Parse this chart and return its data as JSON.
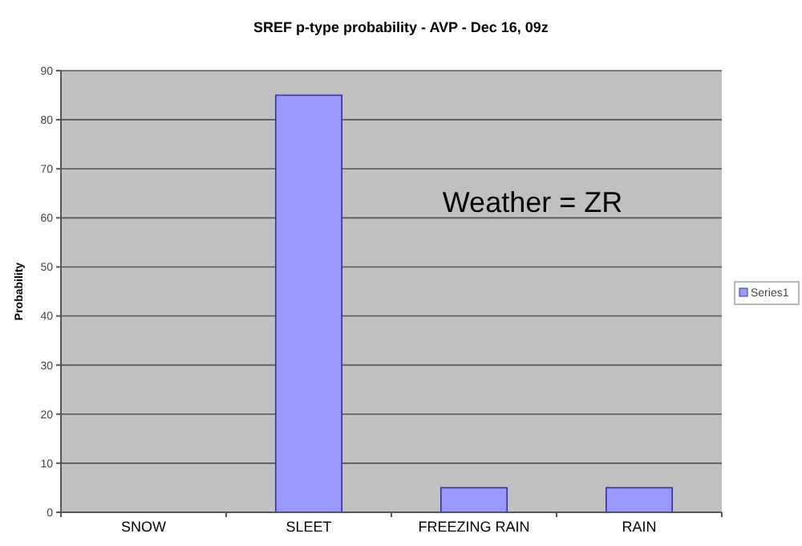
{
  "chart_data": {
    "type": "bar",
    "title": "SREF  p-type probability - AVP - Dec 16, 09z",
    "ylabel": "Probability",
    "categories": [
      "SNOW",
      "SLEET",
      "FREEZING RAIN",
      "RAIN"
    ],
    "series": [
      {
        "name": "Series1",
        "color": "#9999ff",
        "values": [
          0,
          85,
          5,
          5
        ]
      }
    ],
    "ylim": [
      0,
      90
    ],
    "yticks": [
      0,
      10,
      20,
      30,
      40,
      50,
      60,
      70,
      80,
      90
    ],
    "grid": "y",
    "legend": "right",
    "annotations": [
      "Weather = ZR"
    ]
  }
}
